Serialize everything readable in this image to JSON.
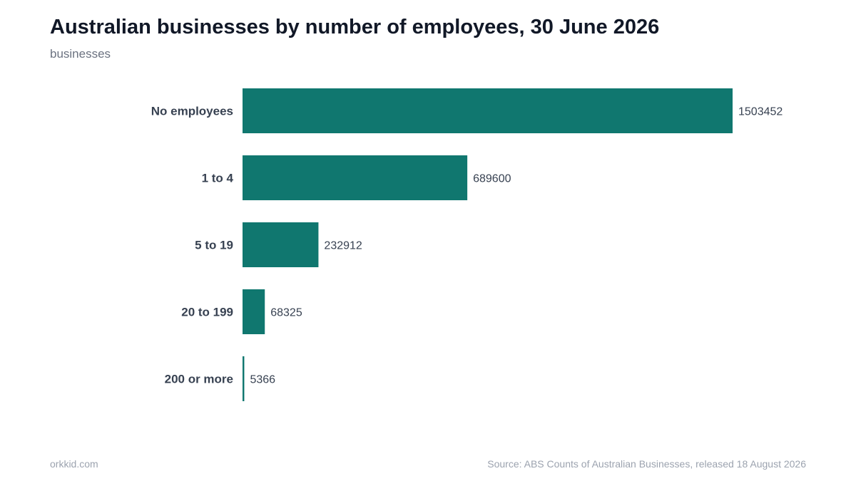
{
  "header": {
    "title": "Australian businesses by number of employees, 30 June 2026",
    "subtitle": "businesses"
  },
  "footer": {
    "brand": "orkkid.com",
    "source": "Source: ABS Counts of Australian Businesses, released 18 August 2026"
  },
  "colors": {
    "bar": "#10776f",
    "category_label": "#374151",
    "value_label": "#374151"
  },
  "chart_data": {
    "type": "bar",
    "orientation": "horizontal",
    "title": "Australian businesses by number of employees, 30 June 2026",
    "subtitle": "businesses",
    "categories": [
      "No employees",
      "1 to 4",
      "5 to 19",
      "20 to 199",
      "200 or more"
    ],
    "values": [
      1503452,
      689600,
      232912,
      68325,
      5366
    ],
    "data_labels": [
      "1503452",
      "689600",
      "232912",
      "68325",
      "5366"
    ],
    "grid": false,
    "legend": "none"
  }
}
